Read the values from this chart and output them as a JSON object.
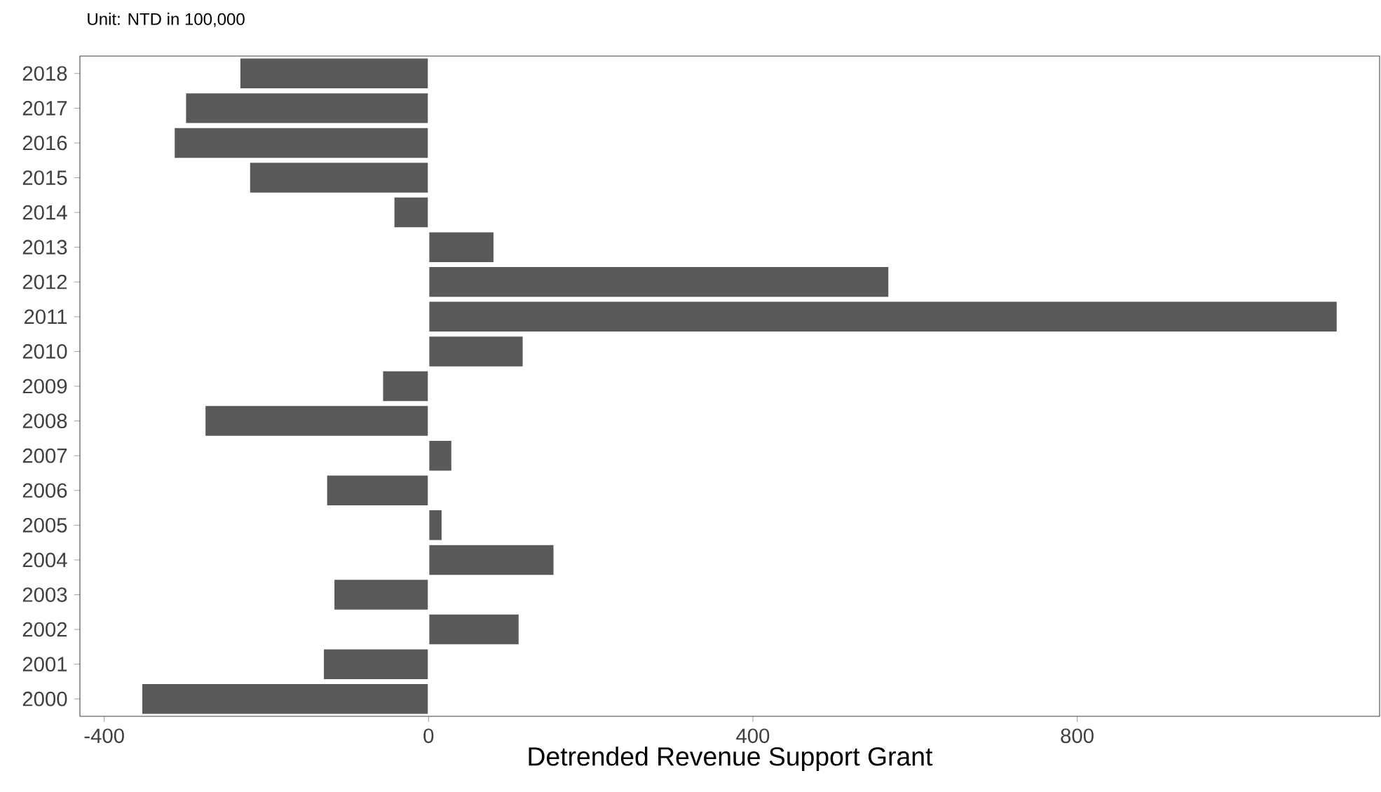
{
  "chart_data": {
    "type": "bar",
    "orientation": "horizontal",
    "title": "Unit: NTD in 100,000",
    "xlabel": "Detrended Revenue Support Grant",
    "categories": [
      "2018",
      "2017",
      "2016",
      "2015",
      "2014",
      "2013",
      "2012",
      "2011",
      "2010",
      "2009",
      "2008",
      "2007",
      "2006",
      "2005",
      "2004",
      "2003",
      "2002",
      "2001",
      "2000"
    ],
    "values": [
      -233,
      -300,
      -314,
      -221,
      -43,
      81,
      568,
      1121,
      117,
      -57,
      -276,
      29,
      -126,
      17,
      155,
      -117,
      112,
      -130,
      -354
    ],
    "color": "#595959",
    "xlim": [
      -430,
      1173
    ],
    "xticks": [
      -400,
      0,
      400,
      800
    ],
    "grid": false
  }
}
